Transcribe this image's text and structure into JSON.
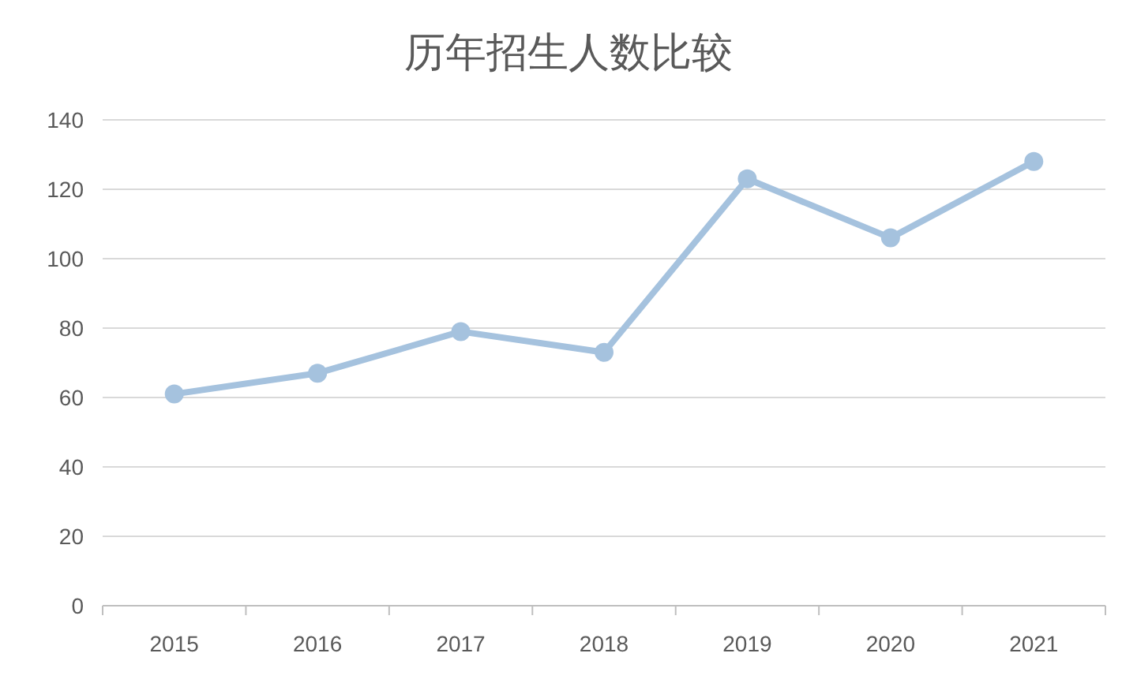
{
  "chart_data": {
    "type": "line",
    "title": "历年招生人数比较",
    "categories": [
      "2015",
      "2016",
      "2017",
      "2018",
      "2019",
      "2020",
      "2021"
    ],
    "series": [
      {
        "color": "#a5c2de",
        "values": [
          61,
          67,
          79,
          73,
          123,
          106,
          128
        ]
      }
    ],
    "ylim": [
      0,
      140
    ],
    "yticks": [
      0,
      20,
      40,
      60,
      80,
      100,
      120,
      140
    ],
    "grid": "y",
    "marker": "circle",
    "line_style": "solid"
  }
}
